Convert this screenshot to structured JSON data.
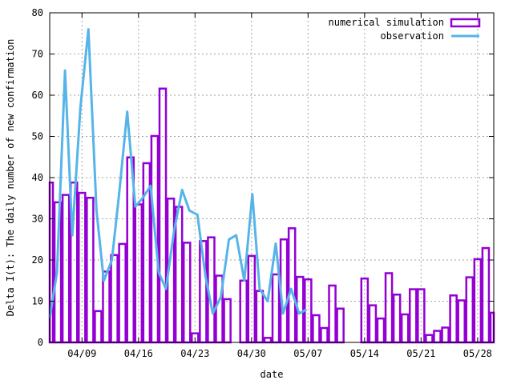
{
  "chart_data": {
    "type": "bar",
    "xlabel": "date",
    "ylabel": "Delta I(t): The daily number of new confirmation",
    "ylim": [
      0,
      80
    ],
    "yticks": [
      0,
      10,
      20,
      30,
      40,
      50,
      60,
      70,
      80
    ],
    "xticks": [
      {
        "day": 4,
        "label": "04/09"
      },
      {
        "day": 11,
        "label": "04/16"
      },
      {
        "day": 18,
        "label": "04/23"
      },
      {
        "day": 25,
        "label": "04/30"
      },
      {
        "day": 32,
        "label": "05/07"
      },
      {
        "day": 39,
        "label": "05/14"
      },
      {
        "day": 46,
        "label": "05/21"
      },
      {
        "day": 53,
        "label": "05/28"
      }
    ],
    "xlim": [
      0,
      55
    ],
    "grid": true,
    "legend_position": "top-right",
    "series": [
      {
        "name": "numerical simulation",
        "style": "boxes",
        "color": "#9400d3",
        "points": [
          [
            0,
            38.8
          ],
          [
            1,
            34
          ],
          [
            2,
            35.8
          ],
          [
            3,
            38.8
          ],
          [
            4,
            36.3
          ],
          [
            5,
            35.1
          ],
          [
            6,
            7.6
          ],
          [
            7,
            17.2
          ],
          [
            8,
            21.2
          ],
          [
            9,
            23.9
          ],
          [
            10,
            44.9
          ],
          [
            11,
            33.5
          ],
          [
            12,
            43.5
          ],
          [
            13,
            50.1
          ],
          [
            14,
            61.6
          ],
          [
            15,
            34.9
          ],
          [
            16,
            32.9
          ],
          [
            17,
            24.2
          ],
          [
            18,
            2.2
          ],
          [
            19,
            24.6
          ],
          [
            20,
            25.5
          ],
          [
            21,
            16.2
          ],
          [
            22,
            10.5
          ],
          [
            23,
            0
          ],
          [
            24,
            15
          ],
          [
            25,
            21
          ],
          [
            26,
            12.5
          ],
          [
            27,
            1.1
          ],
          [
            28,
            16.5
          ],
          [
            29,
            25
          ],
          [
            30,
            27.7
          ],
          [
            31,
            15.9
          ],
          [
            32,
            15.3
          ],
          [
            33,
            6.6
          ],
          [
            34,
            3.5
          ],
          [
            35,
            13.8
          ],
          [
            36,
            8.2
          ],
          [
            37,
            0
          ],
          [
            38,
            0
          ],
          [
            39,
            15.5
          ],
          [
            40,
            9
          ],
          [
            41,
            5.8
          ],
          [
            42,
            16.8
          ],
          [
            43,
            11.6
          ],
          [
            44,
            6.8
          ],
          [
            45,
            12.9
          ],
          [
            46,
            12.9
          ],
          [
            47,
            1.8
          ],
          [
            48,
            2.8
          ],
          [
            49,
            3.6
          ],
          [
            50,
            11.4
          ],
          [
            51,
            10.2
          ],
          [
            52,
            15.8
          ],
          [
            53,
            20.2
          ],
          [
            54,
            22.9
          ],
          [
            55,
            7.2
          ]
        ]
      },
      {
        "name": "observation",
        "style": "line",
        "color": "#56b4e9",
        "points": [
          [
            0,
            6
          ],
          [
            0.9,
            17
          ],
          [
            1.9,
            66
          ],
          [
            2.8,
            26
          ],
          [
            3.8,
            57
          ],
          [
            4.8,
            76
          ],
          [
            5.8,
            32
          ],
          [
            6.7,
            15
          ],
          [
            7.7,
            20
          ],
          [
            8.6,
            36
          ],
          [
            9.6,
            56
          ],
          [
            10.6,
            33
          ],
          [
            11.5,
            35
          ],
          [
            12.5,
            38
          ],
          [
            13.5,
            17
          ],
          [
            14.4,
            13
          ],
          [
            15.4,
            27
          ],
          [
            16.4,
            37
          ],
          [
            17.3,
            32
          ],
          [
            18.3,
            31
          ],
          [
            19.3,
            16
          ],
          [
            20.2,
            7
          ],
          [
            21.2,
            11
          ],
          [
            22.2,
            25
          ],
          [
            23.1,
            26
          ],
          [
            24.1,
            15
          ],
          [
            25.1,
            36
          ],
          [
            26,
            13
          ],
          [
            27,
            10
          ],
          [
            28,
            24
          ],
          [
            28.9,
            7
          ],
          [
            29.9,
            13
          ],
          [
            30.9,
            7
          ],
          [
            31.8,
            8
          ]
        ]
      }
    ]
  }
}
